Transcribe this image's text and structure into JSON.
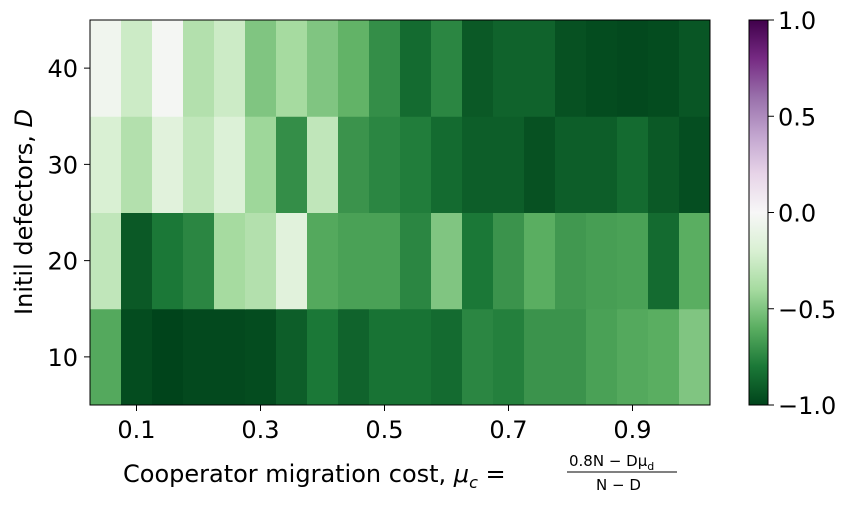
{
  "chart_data": {
    "type": "heatmap",
    "title": "",
    "xlabel": "Cooperator migration cost, ",
    "xlabel_symbol": "μ",
    "xlabel_subscript": "c",
    "xlabel_equals": " = ",
    "xlabel_numerator": "0.8N − Dμ",
    "xlabel_numerator_sub": "d",
    "xlabel_denominator": "N − D",
    "ylabel": "Initil defectors, ",
    "ylabel_symbol": "D",
    "x": [
      0.05,
      0.1,
      0.15,
      0.2,
      0.25,
      0.3,
      0.35,
      0.4,
      0.45,
      0.5,
      0.55,
      0.6,
      0.65,
      0.7,
      0.75,
      0.8,
      0.85,
      0.9,
      0.95,
      1.0
    ],
    "x_ticks": [
      0.1,
      0.3,
      0.5,
      0.7,
      0.9
    ],
    "x_tick_labels": [
      "0.1",
      "0.3",
      "0.5",
      "0.7",
      "0.9"
    ],
    "xlim": [
      0.025,
      1.025
    ],
    "y": [
      10,
      20,
      30,
      40
    ],
    "y_ticks": [
      10,
      20,
      30,
      40
    ],
    "y_tick_labels": [
      "10",
      "20",
      "30",
      "40"
    ],
    "ylim": [
      5,
      45
    ],
    "z": [
      [
        -0.62,
        -0.97,
        -1.0,
        -0.98,
        -0.98,
        -0.97,
        -0.9,
        -0.8,
        -0.88,
        -0.82,
        -0.82,
        -0.85,
        -0.75,
        -0.77,
        -0.7,
        -0.7,
        -0.65,
        -0.62,
        -0.6,
        -0.5
      ],
      [
        -0.3,
        -0.92,
        -0.8,
        -0.75,
        -0.4,
        -0.35,
        -0.15,
        -0.62,
        -0.65,
        -0.65,
        -0.75,
        -0.5,
        -0.8,
        -0.7,
        -0.6,
        -0.68,
        -0.66,
        -0.65,
        -0.85,
        -0.6
      ],
      [
        -0.2,
        -0.35,
        -0.15,
        -0.3,
        -0.18,
        -0.42,
        -0.72,
        -0.3,
        -0.7,
        -0.75,
        -0.78,
        -0.85,
        -0.9,
        -0.9,
        -0.95,
        -0.9,
        -0.9,
        -0.85,
        -0.92,
        -0.96
      ],
      [
        -0.05,
        -0.25,
        -0.02,
        -0.35,
        -0.25,
        -0.5,
        -0.4,
        -0.5,
        -0.58,
        -0.72,
        -0.85,
        -0.75,
        -0.92,
        -0.88,
        -0.88,
        -0.95,
        -0.97,
        -0.98,
        -0.97,
        -0.93
      ]
    ],
    "colorbar": {
      "colormap": "PRGn",
      "vmin": -1.0,
      "vmax": 1.0,
      "ticks": [
        -1.0,
        -0.5,
        0.0,
        0.5,
        1.0
      ],
      "tick_labels": [
        "−1.0",
        "−0.5",
        "0.0",
        "0.5",
        "1.0"
      ]
    },
    "grid": false,
    "legend": "none"
  }
}
